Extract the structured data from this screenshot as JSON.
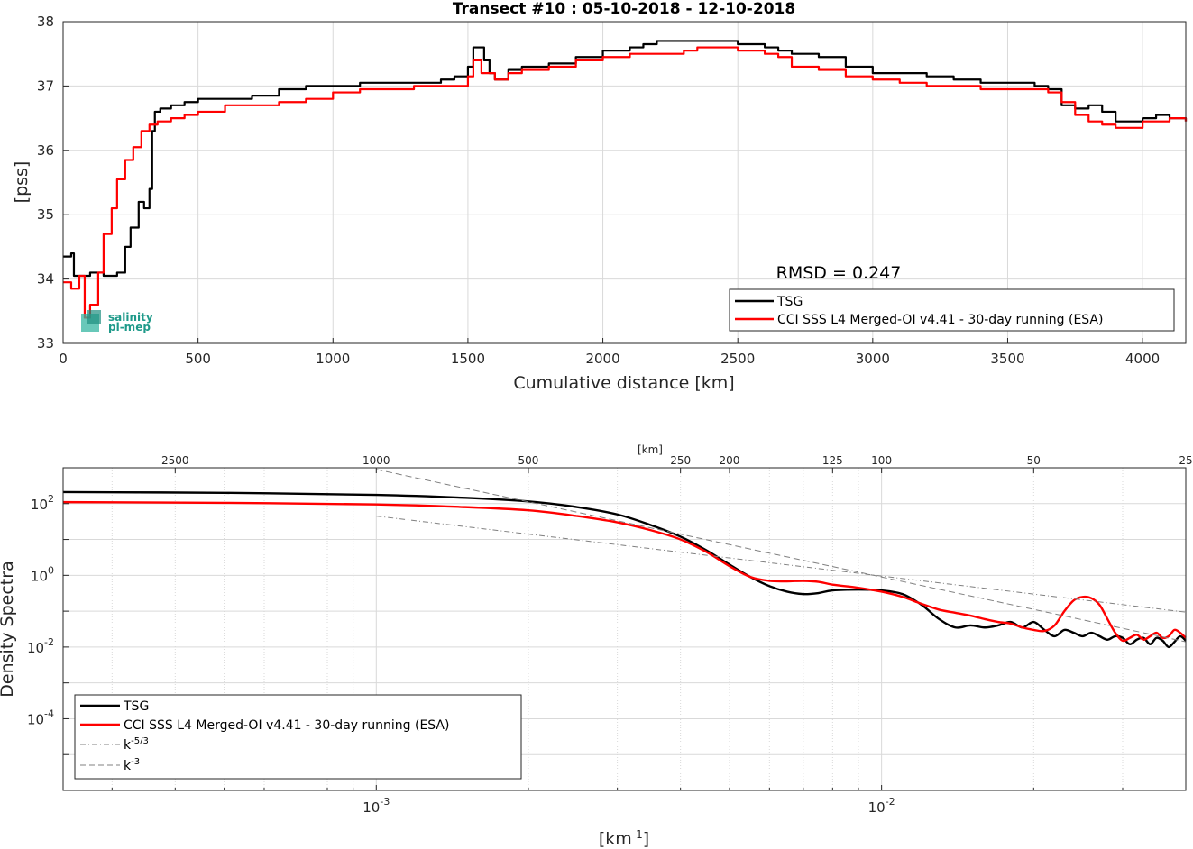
{
  "chart_data": [
    {
      "type": "line",
      "title": "Transect #10 : 05-10-2018 - 12-10-2018",
      "xlabel": "Cumulative distance [km]",
      "ylabel": "[pss]",
      "xlim": [
        0,
        4160
      ],
      "ylim": [
        33,
        38
      ],
      "xticks": [
        "0",
        "500",
        "1000",
        "1500",
        "2000",
        "2500",
        "3000",
        "3500",
        "4000"
      ],
      "yticks": [
        "33",
        "34",
        "35",
        "36",
        "37",
        "38"
      ],
      "grid": true,
      "legend_placement": "bottom-right",
      "annotation": "RMSD = 0.247",
      "logo_text": [
        "salinity",
        "pi-mep"
      ],
      "series": [
        {
          "name": "TSG",
          "color": "#000000",
          "x": [
            0,
            30,
            40,
            60,
            100,
            150,
            200,
            230,
            250,
            280,
            300,
            320,
            330,
            340,
            360,
            400,
            450,
            500,
            600,
            700,
            800,
            900,
            1000,
            1100,
            1200,
            1300,
            1400,
            1450,
            1500,
            1520,
            1540,
            1560,
            1580,
            1600,
            1650,
            1700,
            1800,
            1900,
            2000,
            2100,
            2150,
            2200,
            2300,
            2400,
            2500,
            2600,
            2650,
            2700,
            2800,
            2900,
            3000,
            3100,
            3200,
            3300,
            3400,
            3500,
            3600,
            3650,
            3700,
            3750,
            3800,
            3850,
            3900,
            3950,
            4000,
            4050,
            4100,
            4160
          ],
          "values": [
            34.35,
            34.4,
            34.05,
            34.05,
            34.1,
            34.05,
            34.1,
            34.5,
            34.8,
            35.2,
            35.1,
            35.4,
            36.3,
            36.6,
            36.65,
            36.7,
            36.75,
            36.8,
            36.8,
            36.85,
            36.95,
            37.0,
            37.0,
            37.05,
            37.05,
            37.05,
            37.1,
            37.15,
            37.3,
            37.6,
            37.6,
            37.4,
            37.2,
            37.1,
            37.25,
            37.3,
            37.35,
            37.45,
            37.55,
            37.6,
            37.65,
            37.7,
            37.7,
            37.7,
            37.65,
            37.6,
            37.55,
            37.5,
            37.45,
            37.3,
            37.2,
            37.2,
            37.15,
            37.1,
            37.05,
            37.05,
            37.0,
            36.95,
            36.7,
            36.65,
            36.7,
            36.6,
            36.45,
            36.45,
            36.5,
            36.55,
            36.5,
            36.45
          ]
        },
        {
          "name": "CCI SSS L4 Merged-OI v4.41 - 30-day running (ESA)",
          "color": "#ff0000",
          "x": [
            0,
            30,
            60,
            80,
            100,
            130,
            150,
            180,
            200,
            230,
            260,
            290,
            320,
            350,
            400,
            450,
            500,
            600,
            700,
            800,
            900,
            1000,
            1100,
            1200,
            1300,
            1400,
            1450,
            1500,
            1520,
            1550,
            1600,
            1650,
            1700,
            1800,
            1900,
            2000,
            2100,
            2200,
            2300,
            2350,
            2400,
            2500,
            2600,
            2650,
            2700,
            2800,
            2900,
            3000,
            3100,
            3200,
            3300,
            3400,
            3500,
            3600,
            3650,
            3700,
            3750,
            3800,
            3850,
            3900,
            3950,
            4000,
            4050,
            4100,
            4160
          ],
          "values": [
            33.95,
            33.85,
            34.05,
            33.4,
            33.6,
            34.1,
            34.7,
            35.1,
            35.55,
            35.85,
            36.05,
            36.3,
            36.4,
            36.45,
            36.5,
            36.55,
            36.6,
            36.7,
            36.7,
            36.75,
            36.8,
            36.9,
            36.95,
            36.95,
            37.0,
            37.0,
            37.0,
            37.15,
            37.4,
            37.2,
            37.1,
            37.2,
            37.25,
            37.3,
            37.4,
            37.45,
            37.5,
            37.5,
            37.55,
            37.6,
            37.6,
            37.55,
            37.5,
            37.45,
            37.3,
            37.25,
            37.15,
            37.1,
            37.05,
            37.0,
            37.0,
            36.95,
            36.95,
            36.95,
            36.9,
            36.75,
            36.55,
            36.45,
            36.4,
            36.35,
            36.35,
            36.45,
            36.45,
            36.5,
            36.45
          ]
        }
      ]
    },
    {
      "type": "line",
      "xscale": "log",
      "yscale": "log",
      "xlabel": "[km-1]",
      "xlabel_main": "[km",
      "xlabel_sup": "-1",
      "xlabel_end": "]",
      "ylabel": "Density Spectra",
      "top_axis_label": "[km]",
      "xlim": [
        0.00024,
        0.04
      ],
      "ylim": [
        1e-06,
        1000
      ],
      "xticks": [
        {
          "base": "10",
          "exp": "-3"
        },
        {
          "base": "10",
          "exp": "-2"
        }
      ],
      "yticks": [
        {
          "base": "10",
          "exp": "-4"
        },
        {
          "base": "10",
          "exp": "-2"
        },
        {
          "base": "10",
          "exp": "0"
        },
        {
          "base": "10",
          "exp": "2"
        }
      ],
      "top_ticks": [
        2500,
        1000,
        500,
        250,
        200,
        125,
        100,
        50,
        25
      ],
      "top_tick_labels": [
        "2500",
        "1000",
        "500",
        "250",
        "200",
        "125",
        "100",
        "50",
        "25"
      ],
      "grid": true,
      "legend_placement": "bottom-left",
      "series": [
        {
          "name": "TSG",
          "color": "#000000",
          "x": [
            0.00024,
            0.0005,
            0.001,
            0.0015,
            0.002,
            0.0025,
            0.003,
            0.0035,
            0.004,
            0.0045,
            0.005,
            0.0055,
            0.006,
            0.0065,
            0.007,
            0.0075,
            0.008,
            0.009,
            0.01,
            0.011,
            0.012,
            0.013,
            0.014,
            0.015,
            0.016,
            0.017,
            0.018,
            0.019,
            0.02,
            0.021,
            0.022,
            0.023,
            0.024,
            0.025,
            0.026,
            0.027,
            0.028,
            0.029,
            0.03,
            0.031,
            0.032,
            0.033,
            0.034,
            0.035,
            0.036,
            0.037,
            0.038,
            0.039,
            0.04
          ],
          "values": [
            210,
            200,
            175,
            145,
            115,
            80,
            50,
            25,
            12,
            5,
            2.0,
            0.9,
            0.5,
            0.35,
            0.3,
            0.32,
            0.38,
            0.4,
            0.38,
            0.3,
            0.15,
            0.06,
            0.035,
            0.04,
            0.035,
            0.04,
            0.05,
            0.035,
            0.05,
            0.03,
            0.02,
            0.03,
            0.025,
            0.02,
            0.025,
            0.02,
            0.016,
            0.02,
            0.018,
            0.012,
            0.016,
            0.018,
            0.012,
            0.018,
            0.015,
            0.01,
            0.014,
            0.02,
            0.015
          ]
        },
        {
          "name": "CCI SSS L4 Merged-OI v4.41 - 30-day running (ESA)",
          "color": "#ff0000",
          "x": [
            0.00024,
            0.0005,
            0.001,
            0.0015,
            0.002,
            0.0025,
            0.003,
            0.0035,
            0.004,
            0.0045,
            0.005,
            0.0055,
            0.006,
            0.0065,
            0.007,
            0.0075,
            0.008,
            0.009,
            0.01,
            0.011,
            0.012,
            0.013,
            0.014,
            0.015,
            0.016,
            0.017,
            0.018,
            0.019,
            0.02,
            0.021,
            0.022,
            0.023,
            0.024,
            0.025,
            0.026,
            0.027,
            0.028,
            0.029,
            0.03,
            0.031,
            0.032,
            0.033,
            0.034,
            0.035,
            0.036,
            0.037,
            0.038,
            0.039,
            0.04
          ],
          "values": [
            110,
            105,
            95,
            80,
            65,
            45,
            30,
            18,
            10,
            4.5,
            1.8,
            0.9,
            0.7,
            0.68,
            0.7,
            0.66,
            0.55,
            0.45,
            0.35,
            0.25,
            0.16,
            0.11,
            0.09,
            0.075,
            0.06,
            0.05,
            0.045,
            0.035,
            0.03,
            0.028,
            0.04,
            0.1,
            0.2,
            0.25,
            0.23,
            0.15,
            0.06,
            0.025,
            0.015,
            0.018,
            0.022,
            0.016,
            0.02,
            0.025,
            0.018,
            0.02,
            0.03,
            0.025,
            0.018
          ]
        },
        {
          "name": "k-5/3",
          "color": "#808080",
          "label_base": "k",
          "label_sup": "-5/3",
          "style": "dash-dot",
          "x": [
            0.001,
            0.04
          ],
          "values": [
            45,
            0.094
          ]
        },
        {
          "name": "k-3",
          "color": "#808080",
          "label_base": "k",
          "label_sup": "-3",
          "style": "dashed",
          "x": [
            0.001,
            0.04
          ],
          "values": [
            900,
            0.014
          ]
        }
      ]
    }
  ]
}
